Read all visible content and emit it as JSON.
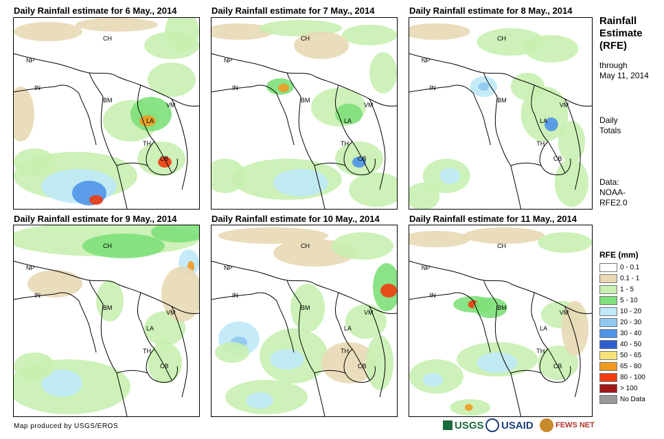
{
  "panels": [
    {
      "title": "Daily Rainfall estimate for 6 May., 2014"
    },
    {
      "title": "Daily Rainfall estimate for 7 May., 2014"
    },
    {
      "title": "Daily Rainfall estimate for 8 May., 2014"
    },
    {
      "title": "Daily Rainfall estimate for 9 May., 2014"
    },
    {
      "title": "Daily Rainfall estimate for 10 May., 2014"
    },
    {
      "title": "Daily Rainfall estimate for 11 May., 2014"
    }
  ],
  "country_labels": {
    "ch": "CH",
    "np": "NP",
    "in": "IN",
    "bm": "BM",
    "vm": "VM",
    "la": "LA",
    "th": "TH",
    "cb": "CB"
  },
  "sidebar": {
    "title_line1": "Rainfall",
    "title_line2": "Estimate",
    "title_line3": "(RFE)",
    "through": "through",
    "date": "May 11, 2014",
    "totals_line1": "Daily",
    "totals_line2": "Totals",
    "data_line1": "Data:",
    "data_line2": "NOAA-",
    "data_line3": "RFE2.0"
  },
  "legend": {
    "title": "RFE (mm)",
    "items": [
      {
        "label": "0 - 0.1",
        "color": "#ffffff"
      },
      {
        "label": "0.1 - 1",
        "color": "#e8d9b5"
      },
      {
        "label": "1 - 5",
        "color": "#c8f0b0"
      },
      {
        "label": "5 - 10",
        "color": "#7ee07a"
      },
      {
        "label": "10 - 20",
        "color": "#bfe9f8"
      },
      {
        "label": "20 - 30",
        "color": "#8ec8f0"
      },
      {
        "label": "30 - 40",
        "color": "#4f94e8"
      },
      {
        "label": "40 - 50",
        "color": "#2e5fd0"
      },
      {
        "label": "50 - 65",
        "color": "#f5e27a"
      },
      {
        "label": "65 - 80",
        "color": "#f09a20"
      },
      {
        "label": "80 - 100",
        "color": "#f03c10"
      },
      {
        "label": "> 100",
        "color": "#a01818"
      },
      {
        "label": "No Data",
        "color": "#999999"
      }
    ]
  },
  "footer": "Map produced by USGS/EROS",
  "logos": {
    "usgs": "USGS",
    "usaid": "USAID",
    "fewsnet": "FEWS NET"
  }
}
